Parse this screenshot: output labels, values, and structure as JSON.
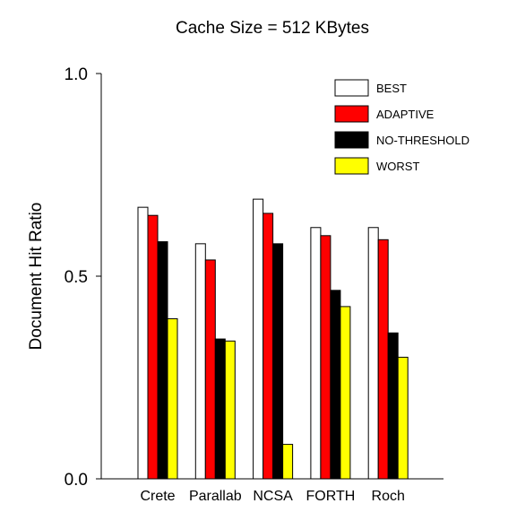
{
  "chart_data": {
    "type": "bar",
    "title": "Cache Size = 512 KBytes",
    "xlabel": "",
    "ylabel": "Document Hit Ratio",
    "ylim": [
      0,
      1
    ],
    "yticks": [
      {
        "value": 0.0,
        "label": "0.0"
      },
      {
        "value": 0.5,
        "label": "0.5"
      },
      {
        "value": 1.0,
        "label": "1.0"
      }
    ],
    "categories": [
      "Crete",
      "Parallab",
      "NCSA",
      "FORTH",
      "Roch"
    ],
    "series": [
      {
        "name": "BEST",
        "color": "#ffffff",
        "values": [
          0.67,
          0.58,
          0.69,
          0.62,
          0.62
        ]
      },
      {
        "name": "ADAPTIVE",
        "color": "#ff0000",
        "values": [
          0.65,
          0.54,
          0.655,
          0.6,
          0.59
        ]
      },
      {
        "name": "NO-THRESHOLD",
        "color": "#000000",
        "values": [
          0.585,
          0.345,
          0.58,
          0.465,
          0.36
        ]
      },
      {
        "name": "WORST",
        "color": "#ffff00",
        "values": [
          0.395,
          0.34,
          0.085,
          0.425,
          0.3
        ]
      }
    ],
    "grid": false,
    "legend_position": "top-right"
  }
}
